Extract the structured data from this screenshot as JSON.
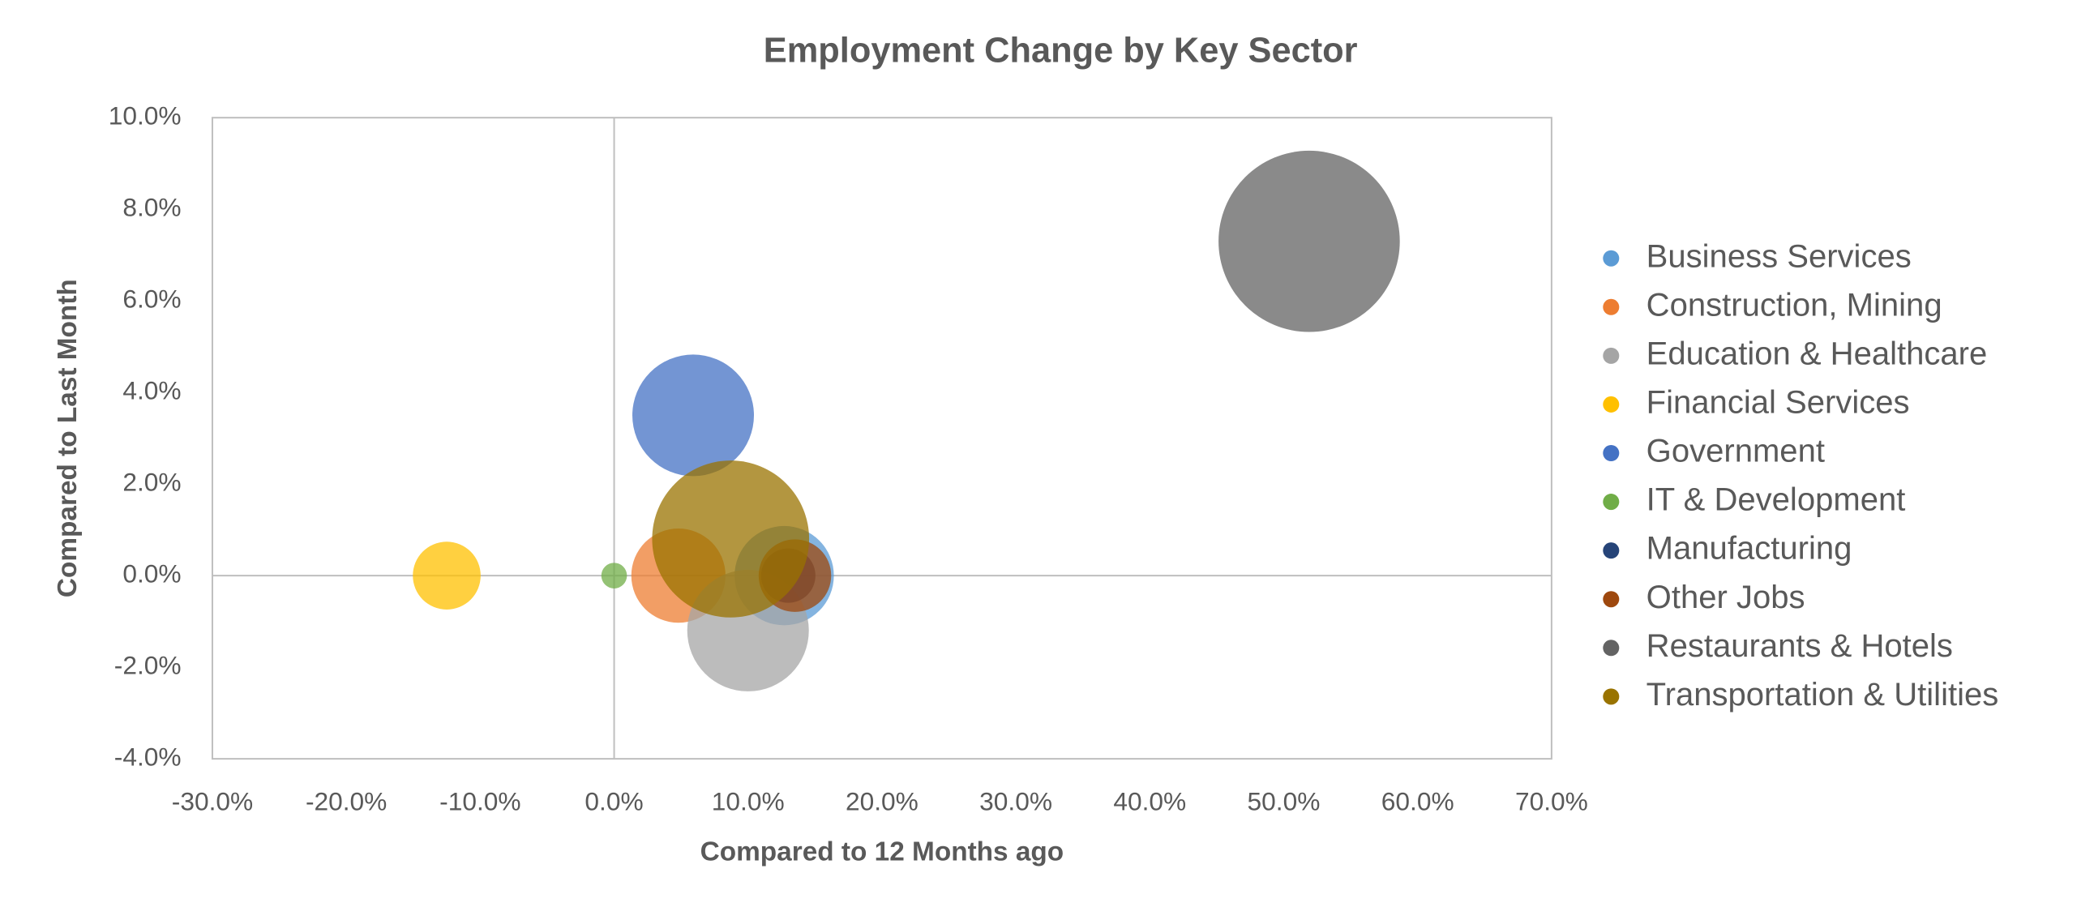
{
  "chart_data": {
    "type": "bubble",
    "title": "Employment Change by Key Sector",
    "x_label": "Compared to 12 Months ago",
    "y_label": "Compared to Last Month",
    "xlim": [
      -30,
      70
    ],
    "ylim": [
      -4,
      10
    ],
    "xticks": [
      {
        "value": -30,
        "label": "-30.0%"
      },
      {
        "value": -20,
        "label": "-20.0%"
      },
      {
        "value": -10,
        "label": "-10.0%"
      },
      {
        "value": 0,
        "label": "0.0%"
      },
      {
        "value": 10,
        "label": "10.0%"
      },
      {
        "value": 20,
        "label": "20.0%"
      },
      {
        "value": 30,
        "label": "30.0%"
      },
      {
        "value": 40,
        "label": "40.0%"
      },
      {
        "value": 50,
        "label": "50.0%"
      },
      {
        "value": 60,
        "label": "60.0%"
      },
      {
        "value": 70,
        "label": "70.0%"
      }
    ],
    "yticks": [
      {
        "value": -4,
        "label": "-4.0%"
      },
      {
        "value": -2,
        "label": "-2.0%"
      },
      {
        "value": 0,
        "label": "0.0%"
      },
      {
        "value": 2,
        "label": "2.0%"
      },
      {
        "value": 4,
        "label": "4.0%"
      },
      {
        "value": 6,
        "label": "6.0%"
      },
      {
        "value": 8,
        "label": "8.0%"
      },
      {
        "value": 10,
        "label": "10.0%"
      }
    ],
    "legend": "right",
    "series": [
      {
        "name": "Business Services",
        "color": "#5b9bd5",
        "x": [
          12.7
        ],
        "values": [
          0
        ],
        "sizes": [
          30
        ]
      },
      {
        "name": "Construction, Mining",
        "color": "#ed7d31",
        "x": [
          4.8
        ],
        "values": [
          0
        ],
        "sizes": [
          27
        ]
      },
      {
        "name": "Education & Healthcare",
        "color": "#a5a5a5",
        "x": [
          10.0
        ],
        "values": [
          -1.2
        ],
        "sizes": [
          45
        ]
      },
      {
        "name": "Financial Services",
        "color": "#ffc000",
        "x": [
          -12.5
        ],
        "values": [
          0
        ],
        "sizes": [
          14
        ]
      },
      {
        "name": "Government",
        "color": "#4472c4",
        "x": [
          5.9
        ],
        "values": [
          3.5
        ],
        "sizes": [
          45
        ]
      },
      {
        "name": "IT & Development",
        "color": "#70ad47",
        "x": [
          0
        ],
        "values": [
          0
        ],
        "sizes": [
          2
        ]
      },
      {
        "name": "Manufacturing",
        "color": "#264478",
        "x": [
          13.0
        ],
        "values": [
          0
        ],
        "sizes": [
          9
        ]
      },
      {
        "name": "Other Jobs",
        "color": "#9e480e",
        "x": [
          13.5
        ],
        "values": [
          0
        ],
        "sizes": [
          16
        ]
      },
      {
        "name": "Restaurants & Hotels",
        "color": "#636363",
        "x": [
          51.9
        ],
        "values": [
          7.3
        ],
        "sizes": [
          100
        ]
      },
      {
        "name": "Transportation & Utilities",
        "color": "#997300",
        "x": [
          8.7
        ],
        "values": [
          0.8
        ],
        "sizes": [
          75
        ]
      }
    ]
  }
}
